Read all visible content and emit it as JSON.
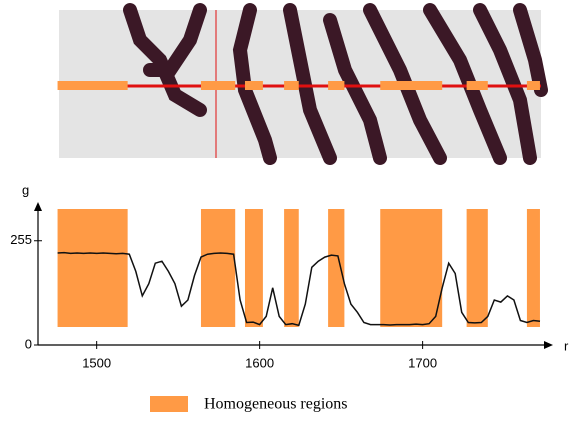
{
  "chart_data": {
    "type": "line",
    "x_label": "r",
    "y_label": "g",
    "xlim": [
      1464,
      1780
    ],
    "ylim": [
      0,
      340
    ],
    "xticks": [
      1500,
      1600,
      1700
    ],
    "yticks": [
      0,
      255
    ],
    "x": [
      1476,
      1480,
      1484,
      1488,
      1492,
      1496,
      1500,
      1504,
      1508,
      1512,
      1516,
      1520,
      1524,
      1528,
      1532,
      1536,
      1540,
      1544,
      1548,
      1552,
      1556,
      1560,
      1564,
      1568,
      1572,
      1576,
      1580,
      1584,
      1588,
      1592,
      1596,
      1600,
      1604,
      1608,
      1612,
      1616,
      1620,
      1624,
      1628,
      1632,
      1636,
      1640,
      1644,
      1648,
      1652,
      1656,
      1660,
      1664,
      1668,
      1672,
      1676,
      1680,
      1684,
      1688,
      1692,
      1696,
      1700,
      1704,
      1708,
      1712,
      1716,
      1720,
      1724,
      1728,
      1732,
      1736,
      1740,
      1744,
      1748,
      1752,
      1756,
      1760,
      1764,
      1768,
      1772
    ],
    "values": [
      225,
      226,
      224,
      225,
      224,
      225,
      224,
      225,
      224,
      223,
      224,
      222,
      180,
      120,
      150,
      200,
      205,
      180,
      150,
      95,
      110,
      170,
      215,
      222,
      224,
      225,
      224,
      222,
      110,
      55,
      56,
      50,
      70,
      140,
      70,
      50,
      52,
      48,
      100,
      190,
      205,
      215,
      220,
      218,
      150,
      100,
      80,
      55,
      50,
      50,
      50,
      49,
      50,
      50,
      50,
      51,
      50,
      52,
      70,
      140,
      200,
      175,
      80,
      55,
      54,
      55,
      70,
      110,
      105,
      120,
      110,
      60,
      55,
      60,
      58
    ],
    "color": "#111111",
    "regions": [
      [
        1476,
        1519
      ],
      [
        1564,
        1585
      ],
      [
        1591,
        1602
      ],
      [
        1615,
        1624
      ],
      [
        1642,
        1652
      ],
      [
        1674,
        1712
      ],
      [
        1727,
        1740
      ],
      [
        1764,
        1772
      ]
    ],
    "region_color": "#ff9a45",
    "legend": "Homogeneous regions"
  }
}
